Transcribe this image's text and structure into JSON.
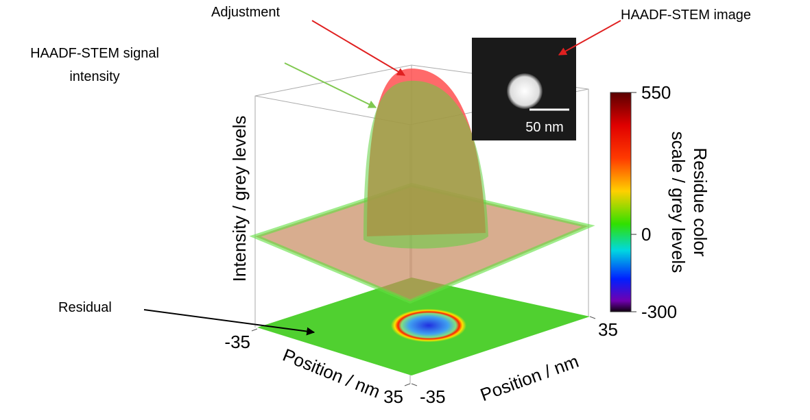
{
  "chart_data": {
    "type": "surface3d",
    "x_label": "Position / nm",
    "xlim": [
      -35,
      35
    ],
    "xticks": [
      -35,
      35
    ],
    "y_label": "Position / nm",
    "ylim": [
      -35,
      35
    ],
    "yticks": [
      -35,
      35
    ],
    "z_label": "Intensity / grey levels",
    "colorbar": {
      "label_lines": [
        "Residue color",
        "scale / grey levels"
      ],
      "lim": [
        -300,
        550
      ],
      "ticks": [
        -300,
        0,
        550
      ]
    },
    "annotations": {
      "adjustment": "Adjustment",
      "inset": "HAADF-STEM image",
      "signal": [
        "HAADF-STEM signal",
        "intensity"
      ],
      "residual": "Residual"
    },
    "inset_scale_bar": "50 nm"
  }
}
